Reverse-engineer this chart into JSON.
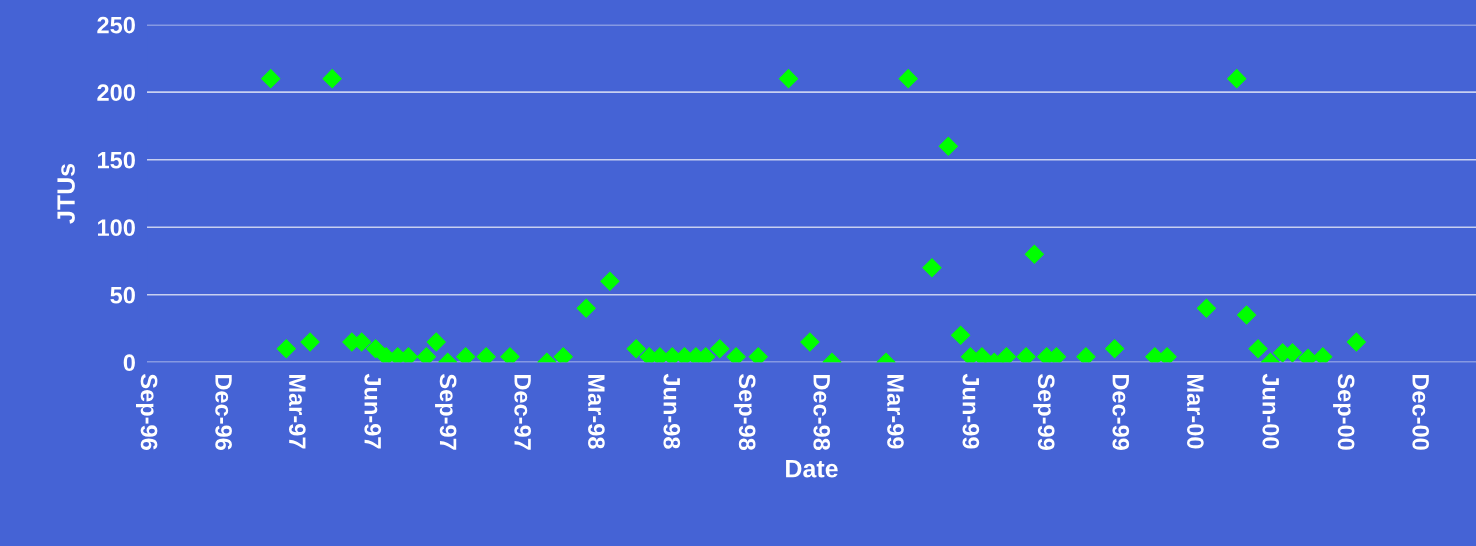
{
  "chart_data": {
    "type": "scatter",
    "xlabel": "Date",
    "ylabel": "JTUs",
    "series": [
      {
        "color": "#00ff00",
        "x": [
          "1997-01-30",
          "1997-02-18",
          "1997-03-19",
          "1997-04-15",
          "1997-05-09",
          "1997-05-21",
          "1997-06-07",
          "1997-06-20",
          "1997-07-04",
          "1997-07-17",
          "1997-08-08",
          "1997-08-20",
          "1997-09-03",
          "1997-09-25",
          "1997-10-20",
          "1997-11-18",
          "1998-01-02",
          "1998-01-22",
          "1998-02-19",
          "1998-03-20",
          "1998-04-21",
          "1998-05-07",
          "1998-05-20",
          "1998-06-04",
          "1998-06-19",
          "1998-07-03",
          "1998-07-15",
          "1998-08-01",
          "1998-08-21",
          "1998-09-17",
          "1998-10-24",
          "1998-11-19",
          "1998-12-16",
          "1999-02-20",
          "1999-03-19",
          "1999-04-17",
          "1999-05-07",
          "1999-05-22",
          "1999-06-03",
          "1999-06-17",
          "1999-07-02",
          "1999-07-17",
          "1999-08-10",
          "1999-08-20",
          "1999-09-04",
          "1999-09-16",
          "1999-10-22",
          "1999-11-26",
          "2000-01-14",
          "2000-01-29",
          "2000-03-17",
          "2000-04-23",
          "2000-05-05",
          "2000-05-19",
          "2000-06-03",
          "2000-06-18",
          "2000-06-30",
          "2000-07-19",
          "2000-08-06",
          "2000-09-16"
        ],
        "values": [
          210,
          10,
          15,
          210,
          15,
          15,
          10,
          4,
          4,
          4,
          4,
          15,
          0,
          4,
          4,
          4,
          0,
          4,
          40,
          60,
          10,
          4,
          4,
          4,
          4,
          4,
          4,
          10,
          4,
          4,
          210,
          15,
          0,
          0,
          210,
          70,
          160,
          20,
          4,
          4,
          0,
          4,
          4,
          80,
          4,
          4,
          4,
          10,
          4,
          4,
          40,
          210,
          35,
          10,
          0,
          7,
          7,
          3,
          4,
          15
        ]
      }
    ],
    "xlim": [
      "1996-09-01",
      "2001-02-09"
    ],
    "xticks": [
      {
        "value": "1996-09-01",
        "label": "Sep-96"
      },
      {
        "value": "1996-12-01",
        "label": "Dec-96"
      },
      {
        "value": "1997-03-01",
        "label": "Mar-97"
      },
      {
        "value": "1997-06-01",
        "label": "Jun-97"
      },
      {
        "value": "1997-09-01",
        "label": "Sep-97"
      },
      {
        "value": "1997-12-01",
        "label": "Dec-97"
      },
      {
        "value": "1998-03-01",
        "label": "Mar-98"
      },
      {
        "value": "1998-06-01",
        "label": "Jun-98"
      },
      {
        "value": "1998-09-01",
        "label": "Sep-98"
      },
      {
        "value": "1998-12-01",
        "label": "Dec-98"
      },
      {
        "value": "1999-03-01",
        "label": "Mar-99"
      },
      {
        "value": "1999-06-01",
        "label": "Jun-99"
      },
      {
        "value": "1999-09-01",
        "label": "Sep-99"
      },
      {
        "value": "1999-12-01",
        "label": "Dec-99"
      },
      {
        "value": "2000-03-01",
        "label": "Mar-00"
      },
      {
        "value": "2000-06-01",
        "label": "Jun-00"
      },
      {
        "value": "2000-09-01",
        "label": "Sep-00"
      },
      {
        "value": "2000-12-01",
        "label": "Dec-00"
      }
    ],
    "ylim": [
      0,
      250
    ],
    "yticks": [
      0,
      50,
      100,
      150,
      200,
      250
    ],
    "grid": "y",
    "marker": "diamond"
  }
}
